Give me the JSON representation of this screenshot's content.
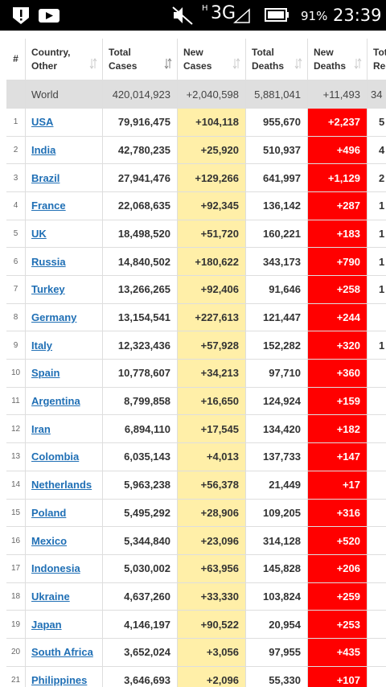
{
  "status_bar": {
    "network_type": "H",
    "network": "3G",
    "battery": "91%",
    "time": "23:39"
  },
  "table": {
    "headers": [
      [
        "#"
      ],
      [
        "Country,",
        "Other"
      ],
      [
        "Total",
        "Cases"
      ],
      [
        "New",
        "Cases"
      ],
      [
        "Total",
        "Deaths"
      ],
      [
        "New",
        "Deaths"
      ],
      [
        "Tot",
        "Rec"
      ]
    ],
    "world": [
      "World",
      "420,014,923",
      "+2,040,598",
      "5,881,041",
      "+11,493",
      "34"
    ],
    "rows": [
      [
        "1",
        "USA",
        "79,916,475",
        "+104,118",
        "955,670",
        "+2,237",
        "5"
      ],
      [
        "2",
        "India",
        "42,780,235",
        "+25,920",
        "510,937",
        "+496",
        "4"
      ],
      [
        "3",
        "Brazil",
        "27,941,476",
        "+129,266",
        "641,997",
        "+1,129",
        "2"
      ],
      [
        "4",
        "France",
        "22,068,635",
        "+92,345",
        "136,142",
        "+287",
        "1"
      ],
      [
        "5",
        "UK",
        "18,498,520",
        "+51,720",
        "160,221",
        "+183",
        "1"
      ],
      [
        "6",
        "Russia",
        "14,840,502",
        "+180,622",
        "343,173",
        "+790",
        "1"
      ],
      [
        "7",
        "Turkey",
        "13,266,265",
        "+92,406",
        "91,646",
        "+258",
        "1"
      ],
      [
        "8",
        "Germany",
        "13,154,541",
        "+227,613",
        "121,447",
        "+244"
      ],
      [
        "9",
        "Italy",
        "12,323,436",
        "+57,928",
        "152,282",
        "+320",
        "1"
      ],
      [
        "10",
        "Spain",
        "10,778,607",
        "+34,213",
        "97,710",
        "+360"
      ],
      [
        "11",
        "Argentina",
        "8,799,858",
        "+16,650",
        "124,924",
        "+159"
      ],
      [
        "12",
        "Iran",
        "6,894,110",
        "+17,545",
        "134,420",
        "+182"
      ],
      [
        "13",
        "Colombia",
        "6,035,143",
        "+4,013",
        "137,733",
        "+147"
      ],
      [
        "14",
        "Netherlands",
        "5,963,238",
        "+56,378",
        "21,449",
        "+17"
      ],
      [
        "15",
        "Poland",
        "5,495,292",
        "+28,906",
        "109,205",
        "+316"
      ],
      [
        "16",
        "Mexico",
        "5,344,840",
        "+23,096",
        "314,128",
        "+520"
      ],
      [
        "17",
        "Indonesia",
        "5,030,002",
        "+63,956",
        "145,828",
        "+206"
      ],
      [
        "18",
        "Ukraine",
        "4,637,260",
        "+33,330",
        "103,824",
        "+259"
      ],
      [
        "19",
        "Japan",
        "4,146,197",
        "+90,522",
        "20,954",
        "+253"
      ],
      [
        "20",
        "South Africa",
        "3,652,024",
        "+3,056",
        "97,955",
        "+435"
      ],
      [
        "21",
        "Philippines",
        "3,646,693",
        "+2,096",
        "55,330",
        "+107"
      ]
    ]
  }
}
